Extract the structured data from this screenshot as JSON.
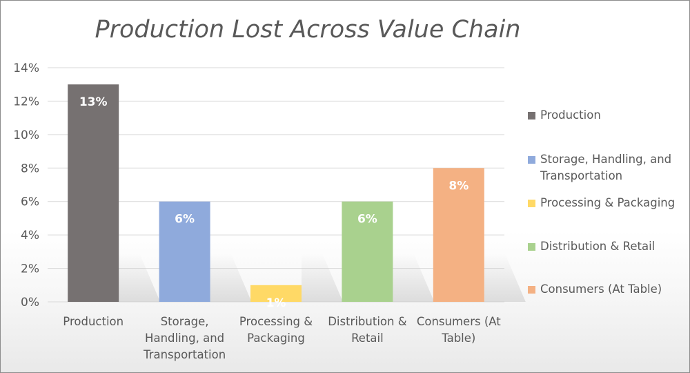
{
  "chart_data": {
    "type": "bar",
    "title": "Production Lost Across Value Chain",
    "categories": [
      "Production",
      "Storage, Handling, and Transportation",
      "Processing & Packaging",
      "Distribution & Retail",
      "Consumers (At Table)"
    ],
    "category_labels": [
      [
        "Production"
      ],
      [
        "Storage,",
        "Handling, and",
        "Transportation"
      ],
      [
        "Processing &",
        "Packaging"
      ],
      [
        "Distribution &",
        "Retail"
      ],
      [
        "Consumers (At",
        "Table)"
      ]
    ],
    "values": [
      13,
      6,
      1,
      6,
      8
    ],
    "data_labels": [
      "13%",
      "6%",
      "1%",
      "6%",
      "8%"
    ],
    "colors": [
      "#767171",
      "#8faadc",
      "#ffd966",
      "#a9d18e",
      "#f4b183"
    ],
    "ylim": [
      0,
      14
    ],
    "yticks": [
      "0%",
      "2%",
      "4%",
      "6%",
      "8%",
      "10%",
      "12%",
      "14%"
    ],
    "xlabel": "",
    "ylabel": "",
    "grid": true,
    "legend_position": "right",
    "legend": [
      [
        "Production"
      ],
      [
        "Storage, Handling, and",
        "Transportation"
      ],
      [
        "Processing & Packaging"
      ],
      [
        "Distribution & Retail"
      ],
      [
        "Consumers (At Table)"
      ]
    ]
  }
}
